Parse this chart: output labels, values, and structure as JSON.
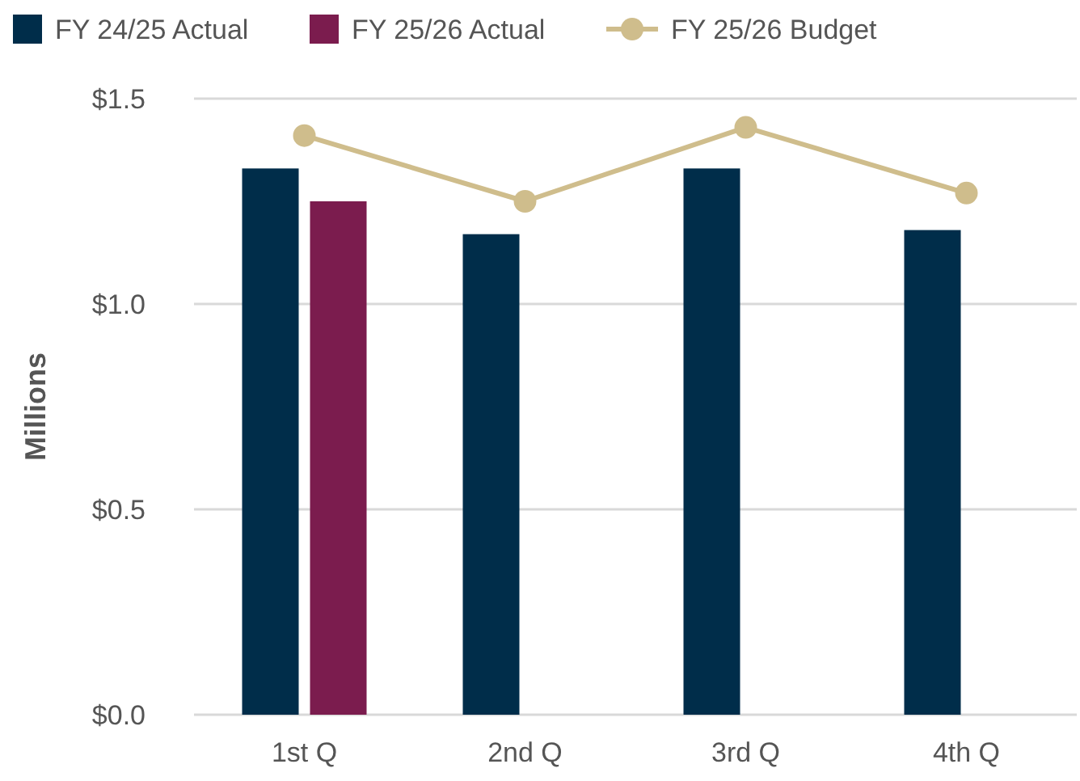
{
  "chart_data": {
    "type": "bar",
    "ylabel": "Millions",
    "categories": [
      "1st Q",
      "2nd Q",
      "3rd Q",
      "4th Q"
    ],
    "series": [
      {
        "name": "FY 24/25 Actual",
        "color": "#002d4a",
        "values": [
          1.33,
          1.17,
          1.33,
          1.18
        ]
      },
      {
        "name": "FY 25/26 Actual",
        "color": "#7b1c4e",
        "values": [
          1.25,
          null,
          null,
          null
        ]
      },
      {
        "name": "FY 25/26 Budget",
        "type": "line",
        "color": "#cfbd8c",
        "marker": "circle",
        "values": [
          1.41,
          1.25,
          1.43,
          1.27
        ]
      }
    ],
    "ylim": [
      0,
      1.5
    ],
    "yticks": [
      {
        "value": 0,
        "label": "$0.0"
      },
      {
        "value": 0.5,
        "label": "$0.5"
      },
      {
        "value": 1,
        "label": "$1.0"
      },
      {
        "value": 1.5,
        "label": "$1.5"
      }
    ],
    "grid": "y",
    "legend": "top"
  }
}
